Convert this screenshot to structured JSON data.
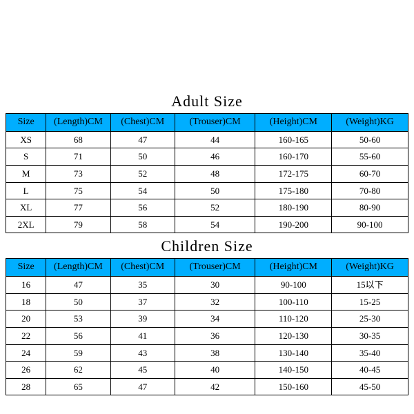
{
  "header_bg": "#00aeff",
  "border_color": "#000000",
  "font": "serif",
  "adult": {
    "title": "Adult Size",
    "columns": [
      "Size",
      "(Length)CM",
      "(Chest)CM",
      "(Trouser)CM",
      "(Height)CM",
      "(Weight)KG"
    ],
    "rows": [
      [
        "XS",
        "68",
        "47",
        "44",
        "160-165",
        "50-60"
      ],
      [
        "S",
        "71",
        "50",
        "46",
        "160-170",
        "55-60"
      ],
      [
        "M",
        "73",
        "52",
        "48",
        "172-175",
        "60-70"
      ],
      [
        "L",
        "75",
        "54",
        "50",
        "175-180",
        "70-80"
      ],
      [
        "XL",
        "77",
        "56",
        "52",
        "180-190",
        "80-90"
      ],
      [
        "2XL",
        "79",
        "58",
        "54",
        "190-200",
        "90-100"
      ]
    ]
  },
  "children": {
    "title": "Children Size",
    "columns": [
      "Size",
      "(Length)CM",
      "(Chest)CM",
      "(Trouser)CM",
      "(Height)CM",
      "(Weight)KG"
    ],
    "rows": [
      [
        "16",
        "47",
        "35",
        "30",
        "90-100",
        "15以下"
      ],
      [
        "18",
        "50",
        "37",
        "32",
        "100-110",
        "15-25"
      ],
      [
        "20",
        "53",
        "39",
        "34",
        "110-120",
        "25-30"
      ],
      [
        "22",
        "56",
        "41",
        "36",
        "120-130",
        "30-35"
      ],
      [
        "24",
        "59",
        "43",
        "38",
        "130-140",
        "35-40"
      ],
      [
        "26",
        "62",
        "45",
        "40",
        "140-150",
        "40-45"
      ],
      [
        "28",
        "65",
        "47",
        "42",
        "150-160",
        "45-50"
      ]
    ]
  }
}
